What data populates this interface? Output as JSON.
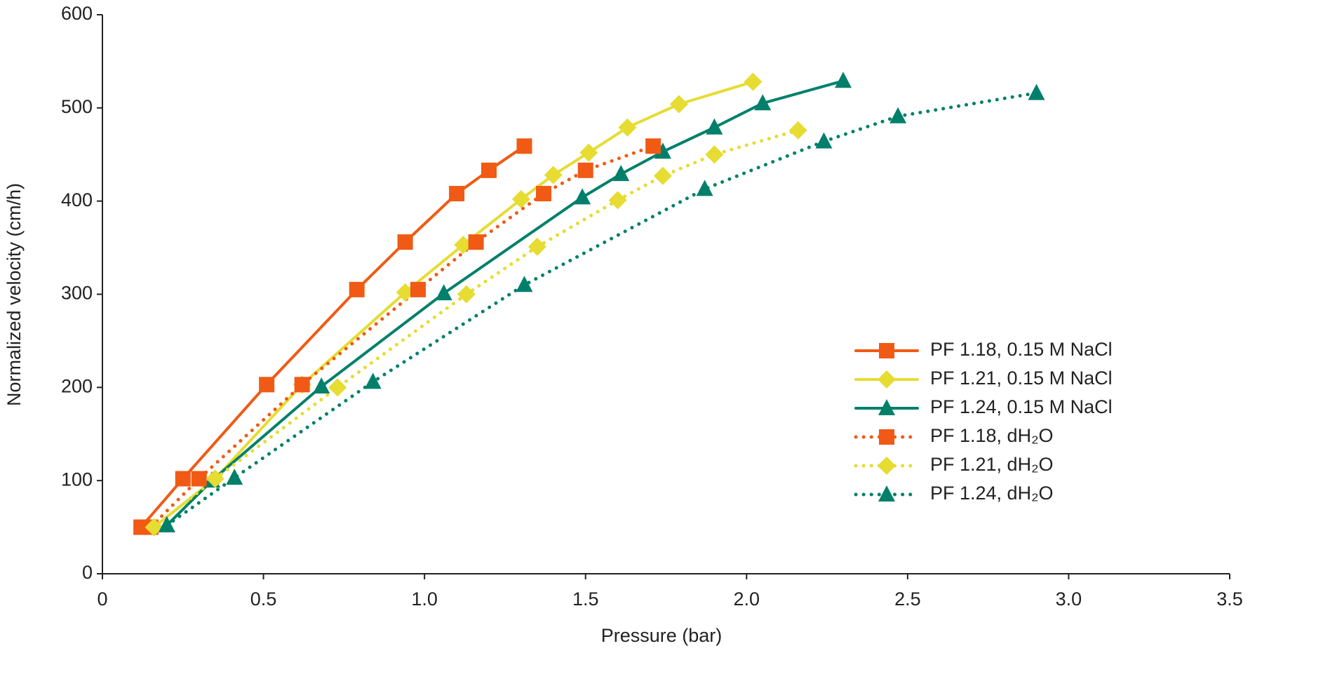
{
  "chart_data": {
    "type": "line",
    "x_label": "Pressure (bar)",
    "y_label": "Normalized velocity (cm/h)",
    "xlim": [
      0,
      3.5
    ],
    "ylim": [
      0,
      600
    ],
    "xticks": [
      0,
      0.5,
      {
        "value": 1,
        "label": "1.0"
      },
      1.5,
      {
        "value": 2,
        "label": "2.0"
      },
      2.5,
      {
        "value": 3,
        "label": "3.0"
      },
      3.5
    ],
    "yticks": [
      0,
      100,
      200,
      300,
      400,
      500,
      600
    ],
    "grid": false,
    "legend": "right",
    "series": [
      {
        "name": "PF 1.18, 0.15 M NaCl",
        "color": "#f05a14",
        "style": "solid",
        "marker": "square",
        "x": [
          0.12,
          0.25,
          0.51,
          0.79,
          0.94,
          1.1,
          1.2,
          1.31
        ],
        "values": [
          50,
          102,
          203,
          305,
          356,
          408,
          433,
          459
        ]
      },
      {
        "name": "PF 1.21, 0.15 M NaCl",
        "color": "#e6dc32",
        "style": "solid",
        "marker": "diamond",
        "x": [
          0.16,
          0.35,
          0.62,
          0.94,
          1.12,
          1.3,
          1.4,
          1.51,
          1.63,
          1.79,
          2.02
        ],
        "values": [
          50,
          102,
          203,
          302,
          353,
          402,
          428,
          452,
          479,
          504,
          528
        ]
      },
      {
        "name": "PF 1.24, 0.15 M NaCl",
        "color": "#00806a",
        "style": "solid",
        "marker": "triangle",
        "x": [
          0.2,
          0.34,
          0.68,
          1.06,
          1.49,
          1.61,
          1.74,
          1.9,
          2.05,
          2.3
        ],
        "values": [
          52,
          100,
          201,
          301,
          404,
          429,
          453,
          479,
          505,
          529
        ]
      },
      {
        "name": "PF 1.18, dH₂O",
        "color": "#f05a14",
        "style": "dotted",
        "marker": "square",
        "x": [
          0.15,
          0.3,
          0.62,
          0.98,
          1.16,
          1.37,
          1.5,
          1.71
        ],
        "values": [
          50,
          102,
          203,
          305,
          356,
          408,
          433,
          459
        ]
      },
      {
        "name": "PF 1.21, dH₂O",
        "color": "#e6dc32",
        "style": "dotted",
        "marker": "diamond",
        "x": [
          0.16,
          0.35,
          0.73,
          1.13,
          1.35,
          1.6,
          1.74,
          1.9,
          2.16
        ],
        "values": [
          50,
          102,
          200,
          300,
          351,
          401,
          427,
          450,
          476
        ]
      },
      {
        "name": "PF 1.24, dH₂O",
        "color": "#00806a",
        "style": "dotted",
        "marker": "triangle",
        "x": [
          0.2,
          0.41,
          0.84,
          1.31,
          1.87,
          2.24,
          2.47,
          2.9
        ],
        "values": [
          52,
          103,
          206,
          310,
          413,
          464,
          491,
          516
        ]
      }
    ]
  }
}
